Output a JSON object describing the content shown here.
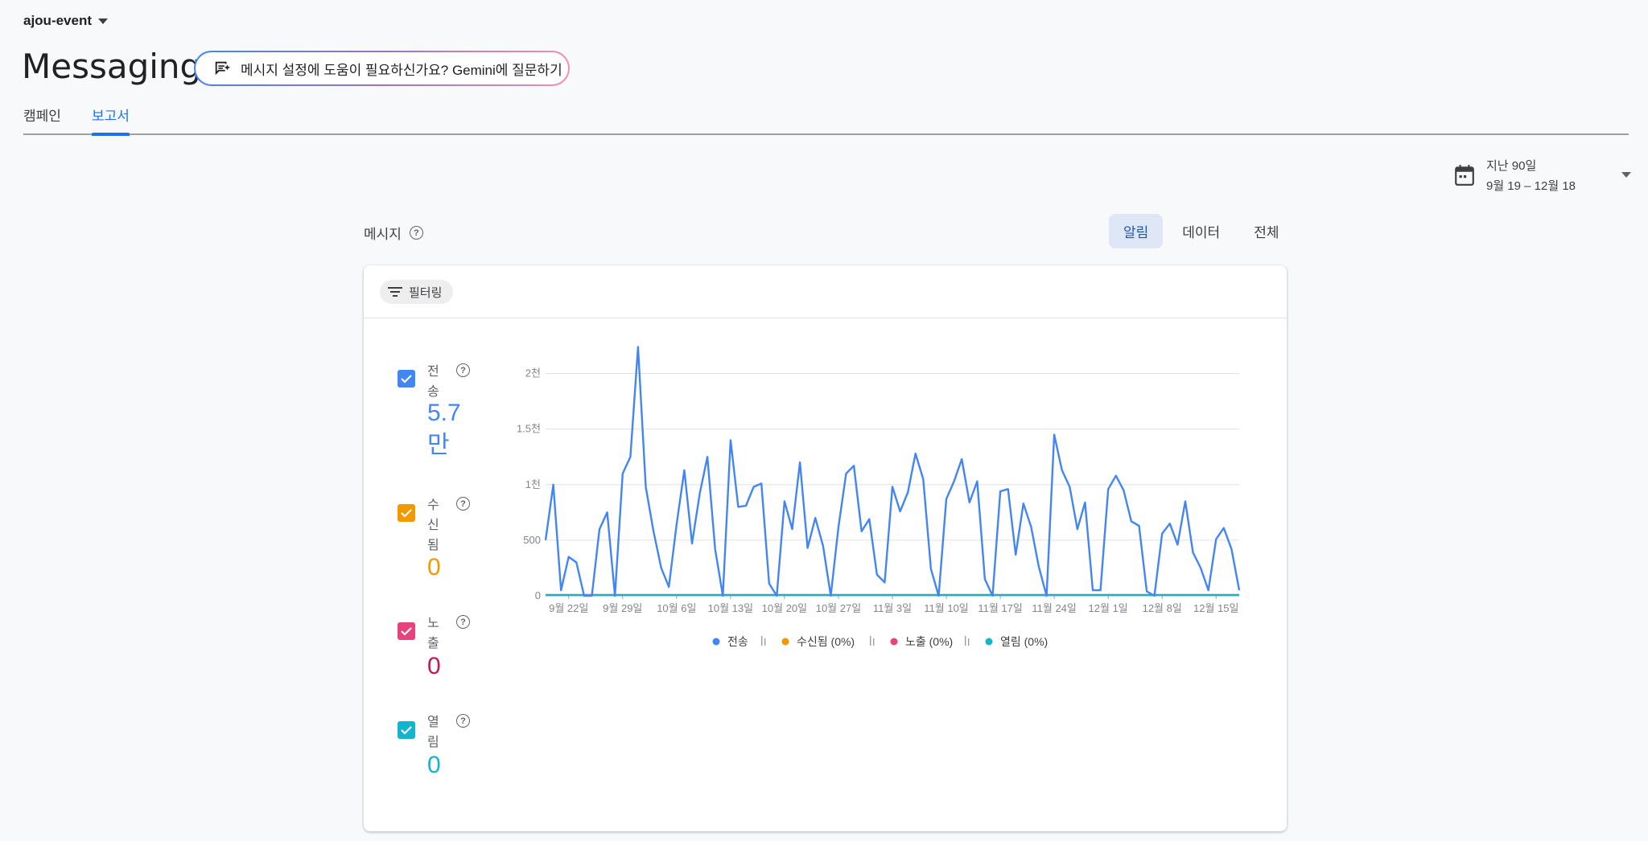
{
  "project": {
    "name": "ajou-event"
  },
  "page": {
    "title": "Messaging"
  },
  "gemini": {
    "label": "메시지 설정에 도움이 필요하신가요? Gemini에 질문하기"
  },
  "tabs": [
    {
      "label": "캠페인",
      "active": false
    },
    {
      "label": "보고서",
      "active": true
    }
  ],
  "date_range": {
    "line1": "지난 90일",
    "line2": "9월 19 – 12월 18"
  },
  "section": {
    "label": "메시지"
  },
  "segments": [
    {
      "label": "알림",
      "active": true
    },
    {
      "label": "데이터",
      "active": false
    },
    {
      "label": "전체",
      "active": false
    }
  ],
  "filter": {
    "label": "필터링"
  },
  "metrics": [
    {
      "label": "전송",
      "value": "5.7만",
      "color": "#4285f4",
      "text_color": "#4285f4"
    },
    {
      "label": "수신됨",
      "value": "0",
      "color": "#f29900",
      "text_color": "#f29900"
    },
    {
      "label": "노출",
      "value": "0",
      "color": "#e8427c",
      "text_color": "#c2185b"
    },
    {
      "label": "열림",
      "value": "0",
      "color": "#12b5cb",
      "text_color": "#12b5cb"
    }
  ],
  "chart_data": {
    "type": "line",
    "y_ticks": [
      "0",
      "500",
      "1천",
      "1.5천",
      "2천"
    ],
    "y_tick_values": [
      0,
      500,
      1000,
      1500,
      2000
    ],
    "ylim": [
      0,
      2250
    ],
    "x_tick_labels": [
      "9월 22일",
      "9월 29일",
      "10월 6일",
      "10월 13일",
      "10월 20일",
      "10월 27일",
      "11월 3일",
      "11월 10일",
      "11월 17일",
      "11월 24일",
      "12월 1일",
      "12월 8일",
      "12월 15일"
    ],
    "x_tick_day_index": [
      3,
      10,
      17,
      24,
      31,
      38,
      45,
      52,
      59,
      66,
      73,
      80,
      87
    ],
    "grid": true,
    "legend_position": "bottom",
    "series": [
      {
        "name": "전송",
        "color": "#4285f4",
        "values": [
          500,
          1000,
          50,
          350,
          300,
          0,
          0,
          600,
          750,
          0,
          1100,
          1250,
          2240,
          980,
          580,
          250,
          80,
          640,
          1130,
          470,
          920,
          1250,
          420,
          0,
          1400,
          800,
          810,
          980,
          1010,
          110,
          0,
          850,
          600,
          1200,
          430,
          700,
          450,
          0,
          620,
          1100,
          1170,
          580,
          690,
          190,
          120,
          980,
          760,
          930,
          1280,
          1050,
          240,
          0,
          870,
          1030,
          1230,
          840,
          1030,
          150,
          0,
          940,
          960,
          370,
          830,
          620,
          260,
          0,
          1450,
          1130,
          980,
          600,
          840,
          50,
          50,
          960,
          1080,
          950,
          670,
          630,
          40,
          0,
          560,
          650,
          460,
          850,
          390,
          250,
          50,
          510,
          610,
          420,
          50
        ]
      },
      {
        "name": "수신됨 (0%)",
        "color": "#f29900",
        "values": []
      },
      {
        "name": "노출 (0%)",
        "color": "#e8427c",
        "values": []
      },
      {
        "name": "열림 (0%)",
        "color": "#12b5cb",
        "values": []
      }
    ]
  }
}
